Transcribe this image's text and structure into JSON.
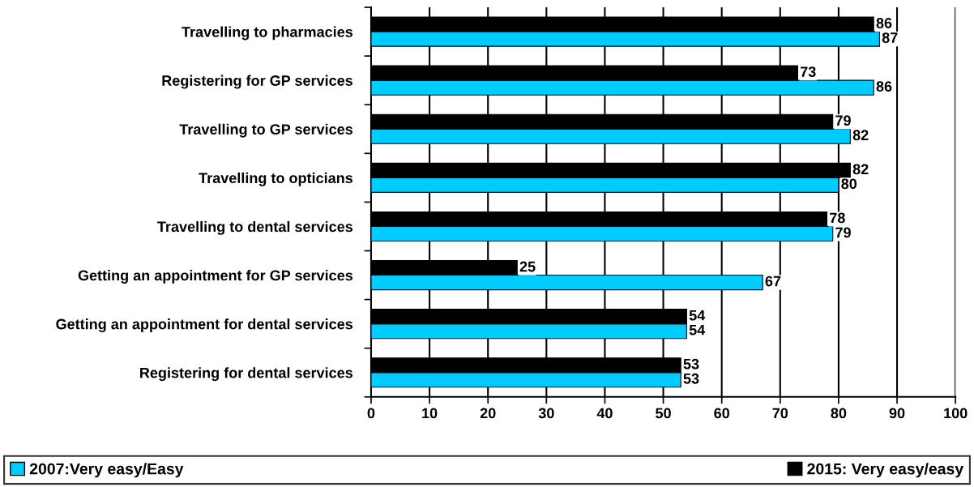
{
  "chart_data": {
    "type": "bar",
    "orientation": "horizontal",
    "categories": [
      "Travelling to pharmacies",
      "Registering for GP services",
      "Travelling to GP services",
      "Travelling to opticians",
      "Travelling to dental services",
      "Getting an appointment for GP services",
      "Getting an appointment for dental services",
      "Registering for dental services"
    ],
    "series": [
      {
        "name": "2007:Very easy/Easy",
        "color": "#00ccff",
        "values": [
          87,
          86,
          82,
          80,
          79,
          67,
          54,
          53
        ]
      },
      {
        "name": "2015: Very easy/easy",
        "color": "#000000",
        "values": [
          86,
          73,
          79,
          82,
          78,
          25,
          54,
          53
        ]
      }
    ],
    "xlim": [
      0,
      100
    ],
    "xticks": [
      0,
      10,
      20,
      30,
      40,
      50,
      60,
      70,
      80,
      90,
      100
    ],
    "grid": "x",
    "legend": "bottom",
    "data_labels": true
  }
}
